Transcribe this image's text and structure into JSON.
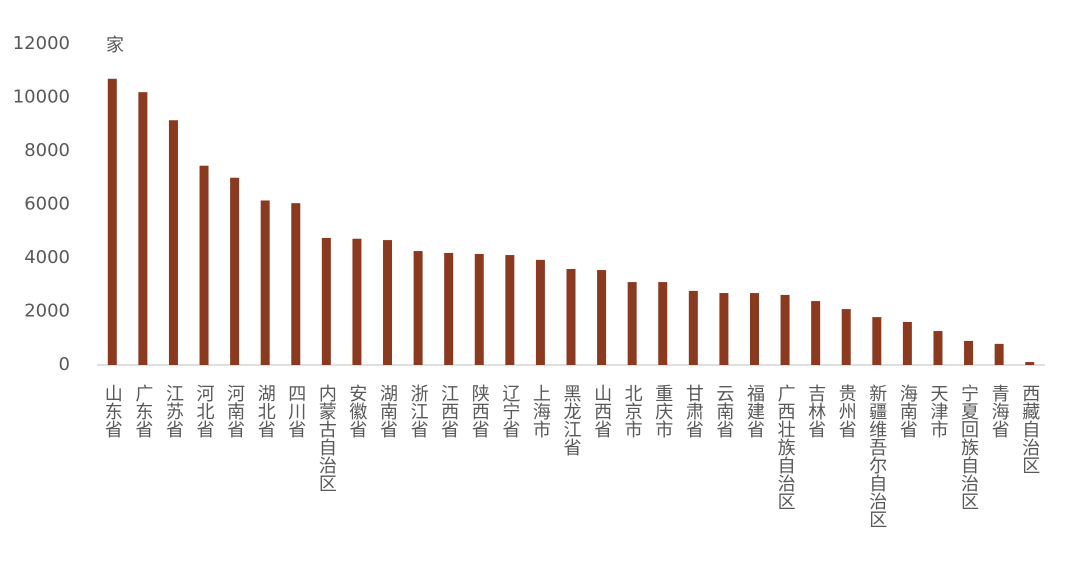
{
  "chart_data": {
    "type": "bar",
    "unit": "家",
    "categories": [
      "山东省",
      "广东省",
      "江苏省",
      "河北省",
      "河南省",
      "湖北省",
      "四川省",
      "内蒙古自治区",
      "安徽省",
      "湖南省",
      "浙江省",
      "江西省",
      "陕西省",
      "辽宁省",
      "上海市",
      "黑龙江省",
      "山西省",
      "北京市",
      "重庆市",
      "甘肃省",
      "云南省",
      "福建省",
      "广西壮族自治区",
      "吉林省",
      "贵州省",
      "新疆维吾尔自治区",
      "海南省",
      "天津市",
      "宁夏回族自治区",
      "青海省",
      "西藏自治区"
    ],
    "values": [
      10700,
      10200,
      9150,
      7450,
      7000,
      6150,
      6050,
      4750,
      4720,
      4670,
      4260,
      4190,
      4150,
      4110,
      3930,
      3590,
      3550,
      3100,
      3100,
      2770,
      2690,
      2690,
      2620,
      2390,
      2090,
      1790,
      1610,
      1270,
      900,
      790,
      110
    ],
    "color": "#8b3a1f",
    "ylim": [
      0,
      12000
    ],
    "yticks": [
      0,
      2000,
      4000,
      6000,
      8000,
      10000,
      12000
    ],
    "grid": false
  }
}
